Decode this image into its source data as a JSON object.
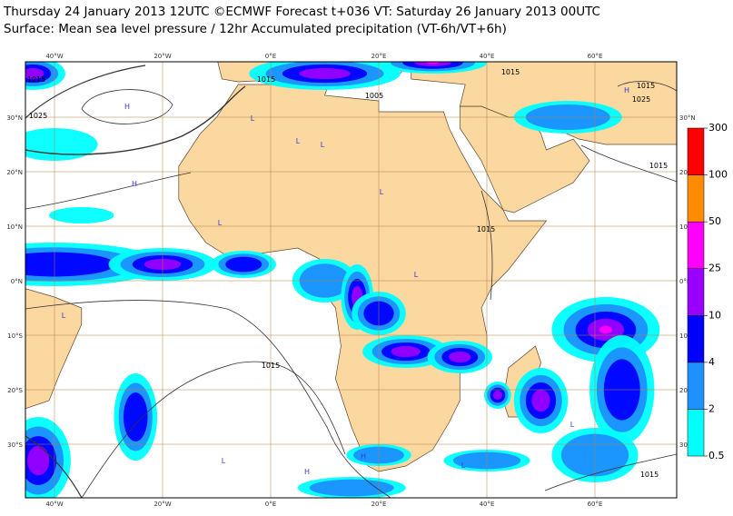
{
  "header": {
    "title": "Thursday 24 January 2013 12UTC ©ECMWF Forecast t+036 VT: Saturday 26 January 2013 00UTC",
    "subtitle": "Surface: Mean sea level pressure / 12hr Accumulated precipitation (VT-6h/VT+6h)"
  },
  "map": {
    "lon_labels": [
      "40°W",
      "20°W",
      "0°E",
      "20°E",
      "40°E",
      "60°E"
    ],
    "lat_labels": [
      "30°N",
      "20°N",
      "10°N",
      "0°N",
      "10°S",
      "20°S",
      "30°S"
    ],
    "isobar_labels": [
      "1015",
      "1025",
      "1015",
      "1005",
      "1015",
      "1015",
      "1025",
      "1015",
      "1015",
      "1015",
      "1015"
    ],
    "pressure_centres": [
      "H",
      "L",
      "L",
      "L",
      "H",
      "L",
      "L",
      "L",
      "L",
      "H",
      "L",
      "H",
      "L",
      "L",
      "H"
    ]
  },
  "colorbar": {
    "levels": [
      0.5,
      2,
      4,
      10,
      25,
      50,
      100,
      300
    ],
    "colors": [
      "#00ffff",
      "#1e90ff",
      "#0000ff",
      "#9900ff",
      "#ff00ff",
      "#ff8c00",
      "#ff0000"
    ]
  }
}
